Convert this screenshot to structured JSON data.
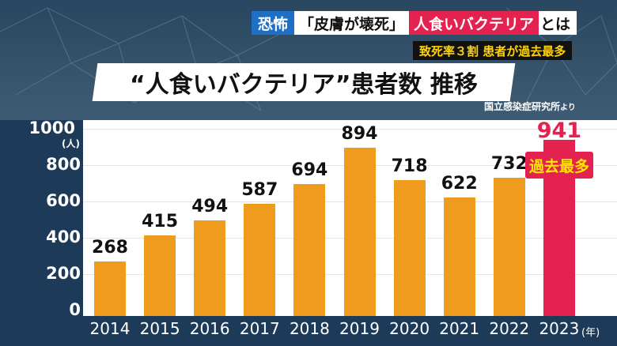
{
  "header": {
    "tag": "恐怖",
    "topic_part1": "「皮膚が壊死」",
    "topic_part2": "人食いバクテリア",
    "topic_part3": "とは",
    "subtitle": "致死率３割  患者が過去最多",
    "source": "国立感染症研究所",
    "source_suffix": "より"
  },
  "chart_data": {
    "type": "bar",
    "title": "“人食いバクテリア”患者数 推移",
    "categories": [
      "2014",
      "2015",
      "2016",
      "2017",
      "2018",
      "2019",
      "2020",
      "2021",
      "2022",
      "2023"
    ],
    "values": [
      268,
      415,
      494,
      587,
      694,
      894,
      718,
      622,
      732,
      941
    ],
    "data_labels": [
      "268",
      "415",
      "494",
      "587",
      "694",
      "894",
      "718",
      "622",
      "732",
      "941"
    ],
    "y_ticks": [
      "0",
      "200",
      "400",
      "600",
      "800",
      "1000"
    ],
    "y_tick_values": [
      0,
      200,
      400,
      600,
      800,
      1000
    ],
    "y_unit": "(人)",
    "x_unit": "(年)",
    "ylim": [
      0,
      1000
    ],
    "grid": true,
    "highlight_index": 9,
    "highlight_note": "過去最多",
    "colors": {
      "bar": "#ef9b1e",
      "highlight": "#e3224f",
      "axis_bg": "#1d3a58"
    }
  }
}
